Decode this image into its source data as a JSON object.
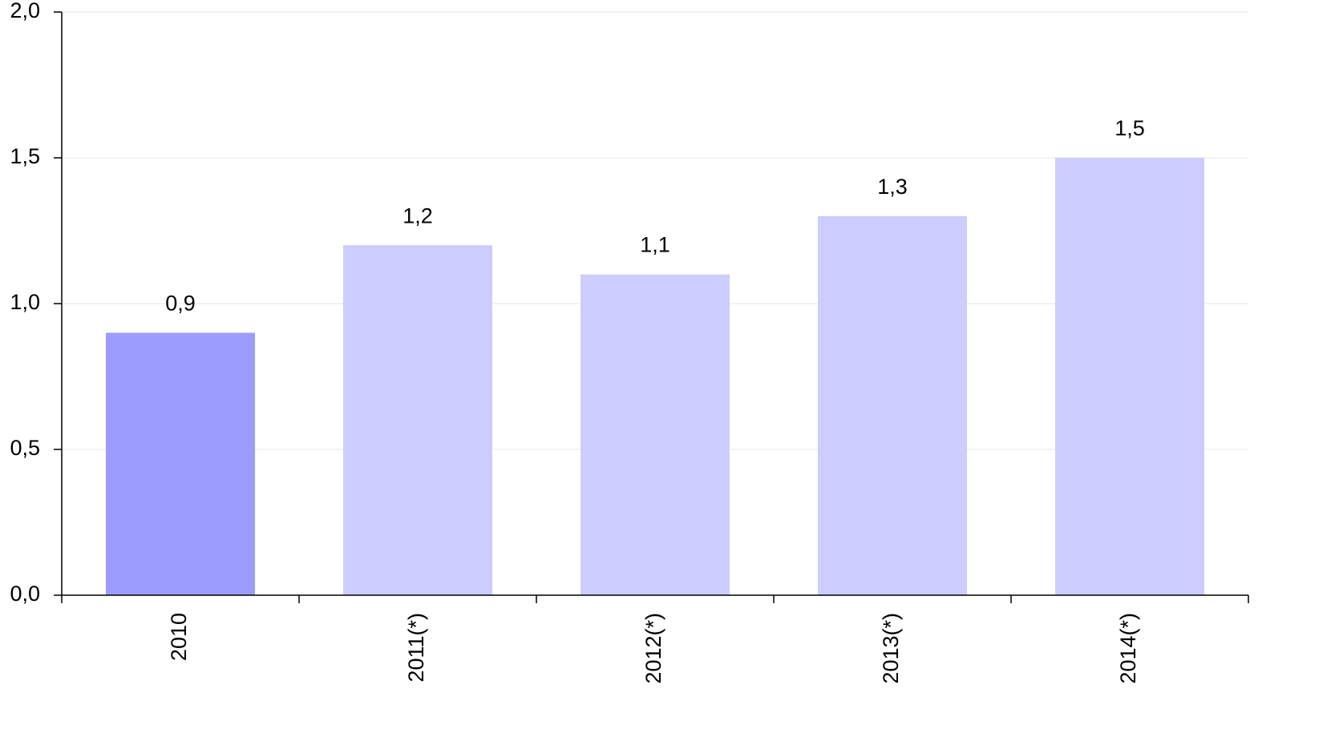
{
  "chart_data": {
    "type": "bar",
    "categories": [
      "2010",
      "2011(*)",
      "2012(*)",
      "2013(*)",
      "2014(*)"
    ],
    "values": [
      0.9,
      1.2,
      1.1,
      1.3,
      1.5
    ],
    "value_labels": [
      "0,9",
      "1,2",
      "1,1",
      "1,3",
      "1,5"
    ],
    "colors": [
      "#9c9cff",
      "#ccccff",
      "#ccccff",
      "#ccccff",
      "#ccccff"
    ],
    "ylim": [
      0,
      2
    ],
    "yticks": [
      {
        "value": 0,
        "label": "0,0"
      },
      {
        "value": 0.5,
        "label": "0,5"
      },
      {
        "value": 1,
        "label": "1,0"
      },
      {
        "value": 1.5,
        "label": "1,5"
      },
      {
        "value": 2,
        "label": "2,0"
      }
    ],
    "grid": true
  }
}
